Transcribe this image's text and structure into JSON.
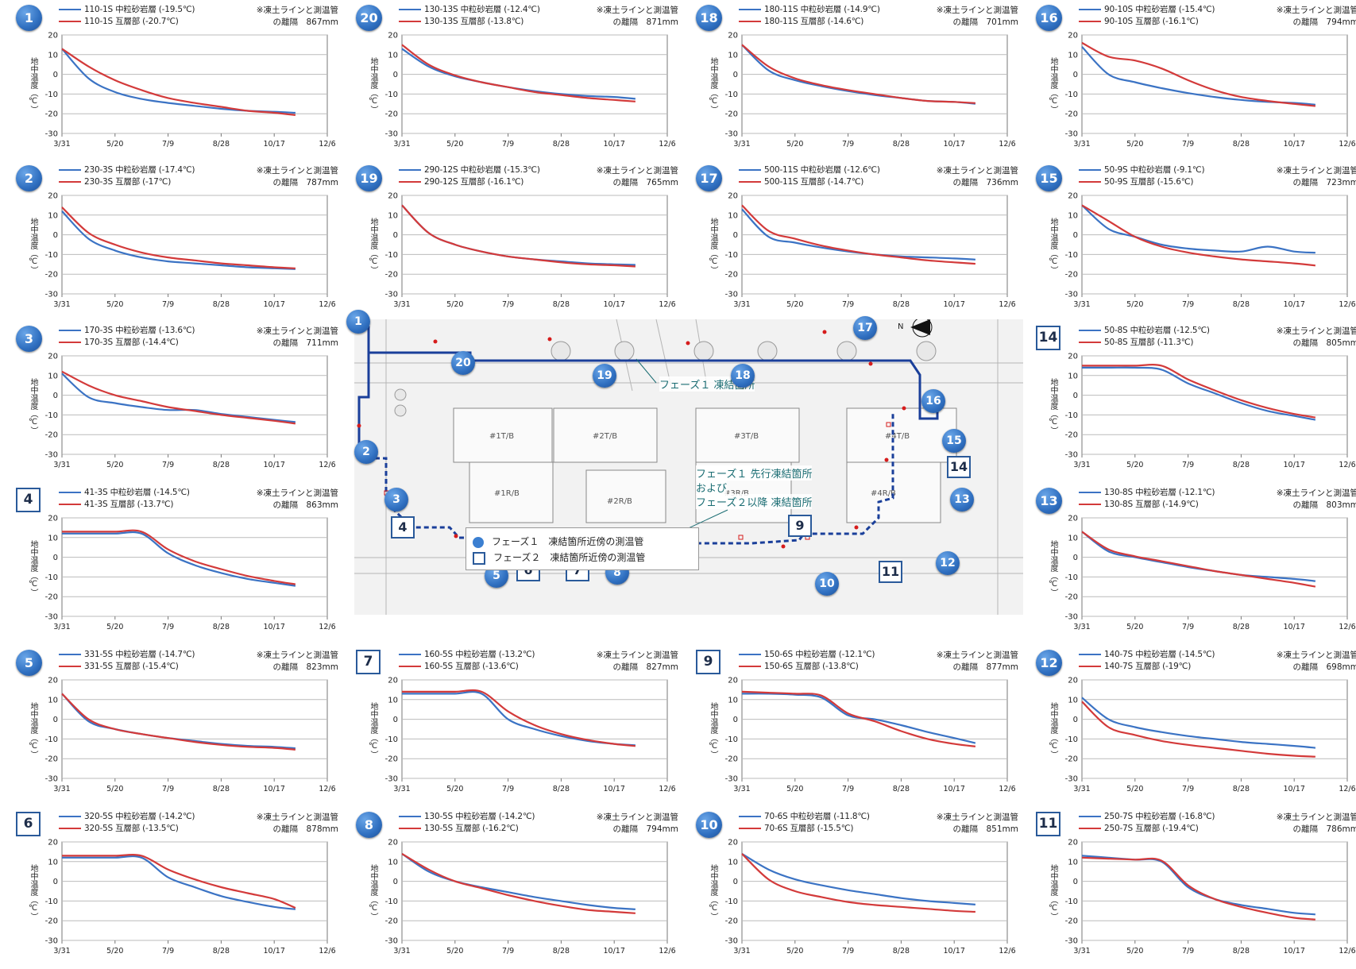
{
  "common": {
    "note_line1": "※凍土ラインと測温管",
    "ylabel": "地中温度（℃）",
    "xticks": [
      "3/31",
      "5/20",
      "7/9",
      "8/28",
      "10/17",
      "12/6"
    ],
    "yticks": [
      20,
      10,
      0,
      -10,
      -20,
      -30
    ],
    "ylim": [
      -30,
      20
    ],
    "colors": {
      "sandstone": "#3b73c4",
      "interbed": "#d33a3a",
      "marker": "#3b7fd1",
      "frozen_line": "#1a3f9a"
    }
  },
  "panels": [
    {
      "id": "1",
      "phase": 1,
      "s1": "110-1S 中粒砂岩層 (-19.5℃)",
      "s2": "110-1S 互層部 (-20.7℃)",
      "note2": "の離隔　867mm"
    },
    {
      "id": "20",
      "phase": 1,
      "s1": "130-13S 中粒砂岩層 (-12.4℃)",
      "s2": "130-13S 互層部 (-13.8℃)",
      "note2": "の離隔　871mm"
    },
    {
      "id": "18",
      "phase": 1,
      "s1": "180-11S 中粒砂岩層 (-14.9℃)",
      "s2": "180-11S 互層部 (-14.6℃)",
      "note2": "の離隔　701mm"
    },
    {
      "id": "16",
      "phase": 1,
      "s1": "90-10S 中粒砂岩層 (-15.4℃)",
      "s2": "90-10S 互層部 (-16.1℃)",
      "note2": "の離隔　794mm"
    },
    {
      "id": "2",
      "phase": 1,
      "s1": "230-3S 中粒砂岩層 (-17.4℃)",
      "s2": "230-3S 互層部 (-17℃)",
      "note2": "の離隔　787mm"
    },
    {
      "id": "19",
      "phase": 1,
      "s1": "290-12S 中粒砂岩層 (-15.3℃)",
      "s2": "290-12S 互層部 (-16.1℃)",
      "note2": "の離隔　765mm"
    },
    {
      "id": "17",
      "phase": 1,
      "s1": "500-11S 中粒砂岩層 (-12.6℃)",
      "s2": "500-11S 互層部 (-14.7℃)",
      "note2": "の離隔　736mm"
    },
    {
      "id": "15",
      "phase": 1,
      "s1": "50-9S 中粒砂岩層 (-9.1℃)",
      "s2": "50-9S 互層部 (-15.6℃)",
      "note2": "の離隔　723mm"
    },
    {
      "id": "3",
      "phase": 1,
      "s1": "170-3S 中粒砂岩層 (-13.6℃)",
      "s2": "170-3S 互層部 (-14.4℃)",
      "note2": "の離隔　711mm"
    },
    {
      "id": "14",
      "phase": 2,
      "s1": "50-8S 中粒砂岩層 (-12.5℃)",
      "s2": "50-8S 互層部 (-11.3℃)",
      "note2": "の離隔　805mm"
    },
    {
      "id": "4",
      "phase": 2,
      "s1": "41-3S 中粒砂岩層 (-14.5℃)",
      "s2": "41-3S 互層部 (-13.7℃)",
      "note2": "の離隔　863mm"
    },
    {
      "id": "13",
      "phase": 1,
      "s1": "130-8S 中粒砂岩層 (-12.1℃)",
      "s2": "130-8S 互層部 (-14.9℃)",
      "note2": "の離隔　803mm"
    },
    {
      "id": "5",
      "phase": 1,
      "s1": "331-5S 中粒砂岩層 (-14.7℃)",
      "s2": "331-5S 互層部 (-15.4℃)",
      "note2": "の離隔　823mm"
    },
    {
      "id": "7",
      "phase": 2,
      "s1": "160-5S 中粒砂岩層 (-13.2℃)",
      "s2": "160-5S 互層部 (-13.6℃)",
      "note2": "の離隔　827mm"
    },
    {
      "id": "9",
      "phase": 2,
      "s1": "150-6S 中粒砂岩層 (-12.1℃)",
      "s2": "150-6S 互層部 (-13.8℃)",
      "note2": "の離隔　877mm"
    },
    {
      "id": "12",
      "phase": 1,
      "s1": "140-7S 中粒砂岩層 (-14.5℃)",
      "s2": "140-7S 互層部 (-19℃)",
      "note2": "の離隔　698mm"
    },
    {
      "id": "6",
      "phase": 2,
      "s1": "320-5S 中粒砂岩層 (-14.2℃)",
      "s2": "320-5S 互層部 (-13.5℃)",
      "note2": "の離隔　878mm"
    },
    {
      "id": "8",
      "phase": 1,
      "s1": "130-5S 中粒砂岩層 (-14.2℃)",
      "s2": "130-5S 互層部 (-16.2℃)",
      "note2": "の離隔　794mm"
    },
    {
      "id": "10",
      "phase": 1,
      "s1": "70-6S 中粒砂岩層 (-11.8℃)",
      "s2": "70-6S 互層部 (-15.5℃)",
      "note2": "の離隔　851mm"
    },
    {
      "id": "11",
      "phase": 2,
      "s1": "250-7S 中粒砂岩層 (-16.8℃)",
      "s2": "250-7S 互層部 (-19.4℃)",
      "note2": "の離隔　786mm"
    }
  ],
  "chart_data": [
    {
      "type": "line",
      "panel": "1",
      "x": [
        "3/31",
        "4/25",
        "5/20",
        "6/14",
        "7/9",
        "8/3",
        "8/28",
        "9/22",
        "10/17",
        "11/6"
      ],
      "series": [
        {
          "name": "110-1S 中粒砂岩層",
          "values": [
            13,
            -2,
            -9,
            -12.5,
            -14.5,
            -16,
            -17.5,
            -18.5,
            -19,
            -19.5
          ]
        },
        {
          "name": "110-1S 互層部",
          "values": [
            13,
            4,
            -3,
            -8,
            -12,
            -14.5,
            -16.5,
            -18.5,
            -19.5,
            -20.7
          ]
        }
      ]
    },
    {
      "type": "line",
      "panel": "20",
      "x": [
        "3/31",
        "4/25",
        "5/20",
        "6/14",
        "7/9",
        "8/3",
        "8/28",
        "9/22",
        "10/17",
        "11/6"
      ],
      "series": [
        {
          "name": "130-13S 中粒砂岩層",
          "values": [
            13,
            4,
            -1,
            -4,
            -6.5,
            -8.5,
            -10,
            -11,
            -11.5,
            -12.4
          ]
        },
        {
          "name": "130-13S 互層部",
          "values": [
            15,
            5,
            -0.5,
            -4,
            -6.5,
            -9,
            -10.5,
            -12,
            -13,
            -13.8
          ]
        }
      ]
    },
    {
      "type": "line",
      "panel": "18",
      "x": [
        "3/31",
        "4/25",
        "5/20",
        "6/14",
        "7/9",
        "8/3",
        "8/28",
        "9/22",
        "10/17",
        "11/6"
      ],
      "series": [
        {
          "name": "180-11S 中粒砂岩層",
          "values": [
            15,
            2,
            -3,
            -6,
            -8.5,
            -10.5,
            -12,
            -13.5,
            -14,
            -14.9
          ]
        },
        {
          "name": "180-11S 互層部",
          "values": [
            15,
            4,
            -2,
            -5.5,
            -8,
            -10,
            -12,
            -13.5,
            -14,
            -14.6
          ]
        }
      ]
    },
    {
      "type": "line",
      "panel": "16",
      "x": [
        "3/31",
        "4/25",
        "5/20",
        "6/14",
        "7/9",
        "8/3",
        "8/28",
        "9/22",
        "10/17",
        "11/6"
      ],
      "series": [
        {
          "name": "90-10S 中粒砂岩層",
          "values": [
            14,
            0,
            -4,
            -7,
            -9.5,
            -11.5,
            -13,
            -14,
            -14.5,
            -15.4
          ]
        },
        {
          "name": "90-10S 互層部",
          "values": [
            16,
            9,
            7,
            3,
            -3,
            -8,
            -11.5,
            -13.5,
            -15,
            -16.1
          ]
        }
      ]
    },
    {
      "type": "line",
      "panel": "2",
      "x": [
        "3/31",
        "4/25",
        "5/20",
        "6/14",
        "7/9",
        "8/3",
        "8/28",
        "9/22",
        "10/17",
        "11/6"
      ],
      "series": [
        {
          "name": "230-3S 中粒砂岩層",
          "values": [
            12,
            -2,
            -8,
            -11.5,
            -13.5,
            -14.5,
            -15.5,
            -16.5,
            -17,
            -17.4
          ]
        },
        {
          "name": "230-3S 互層部",
          "values": [
            14,
            1,
            -5,
            -9,
            -11.5,
            -13,
            -14.5,
            -15.5,
            -16.5,
            -17
          ]
        }
      ]
    },
    {
      "type": "line",
      "panel": "19",
      "x": [
        "3/31",
        "4/25",
        "5/20",
        "6/14",
        "7/9",
        "8/3",
        "8/28",
        "9/22",
        "10/17",
        "11/6"
      ],
      "series": [
        {
          "name": "290-12S 中粒砂岩層",
          "values": [
            15,
            1,
            -5,
            -8.5,
            -11,
            -12.5,
            -13.5,
            -14.5,
            -15,
            -15.3
          ]
        },
        {
          "name": "290-12S 互層部",
          "values": [
            15,
            1,
            -5,
            -8.5,
            -11,
            -12.5,
            -14,
            -15,
            -15.5,
            -16.1
          ]
        }
      ]
    },
    {
      "type": "line",
      "panel": "17",
      "x": [
        "3/31",
        "4/25",
        "5/20",
        "6/14",
        "7/9",
        "8/3",
        "8/28",
        "9/22",
        "10/17",
        "11/6"
      ],
      "series": [
        {
          "name": "500-11S 中粒砂岩層",
          "values": [
            13,
            -1,
            -4,
            -6.5,
            -8.5,
            -10,
            -11,
            -11.5,
            -12,
            -12.6
          ]
        },
        {
          "name": "500-11S 互層部",
          "values": [
            15,
            2,
            -2,
            -5.5,
            -8,
            -10,
            -11.5,
            -13,
            -14,
            -14.7
          ]
        }
      ]
    },
    {
      "type": "line",
      "panel": "15",
      "x": [
        "3/31",
        "4/25",
        "5/20",
        "6/14",
        "7/9",
        "8/3",
        "8/28",
        "9/22",
        "10/17",
        "11/6"
      ],
      "series": [
        {
          "name": "50-9S 中粒砂岩層",
          "values": [
            15,
            3,
            -1,
            -5,
            -7,
            -8,
            -8.5,
            -6,
            -8.5,
            -9.1
          ]
        },
        {
          "name": "50-9S 互層部",
          "values": [
            15,
            7,
            -1,
            -6,
            -9,
            -11,
            -12.5,
            -13.5,
            -14.5,
            -15.6
          ]
        }
      ]
    },
    {
      "type": "line",
      "panel": "3",
      "x": [
        "3/31",
        "4/25",
        "5/20",
        "6/14",
        "7/9",
        "8/3",
        "8/28",
        "9/22",
        "10/17",
        "11/6"
      ],
      "series": [
        {
          "name": "170-3S 中粒砂岩層",
          "values": [
            11,
            -1,
            -4,
            -6,
            -7.5,
            -7.5,
            -9.5,
            -11,
            -12.5,
            -13.6
          ]
        },
        {
          "name": "170-3S 互層部",
          "values": [
            12,
            5,
            0,
            -3,
            -6,
            -8,
            -10,
            -11.5,
            -13,
            -14.4
          ]
        }
      ]
    },
    {
      "type": "line",
      "panel": "14",
      "x": [
        "3/31",
        "4/25",
        "5/20",
        "6/14",
        "7/9",
        "8/3",
        "8/28",
        "9/22",
        "10/17",
        "11/6"
      ],
      "series": [
        {
          "name": "50-8S 中粒砂岩層",
          "values": [
            14,
            14,
            14,
            13,
            6,
            1,
            -4,
            -8,
            -10.5,
            -12.5
          ]
        },
        {
          "name": "50-8S 互層部",
          "values": [
            15,
            15,
            15,
            15,
            8,
            2.5,
            -2.5,
            -6.5,
            -9.5,
            -11.3
          ]
        }
      ]
    },
    {
      "type": "line",
      "panel": "4",
      "x": [
        "3/31",
        "4/25",
        "5/20",
        "6/14",
        "7/9",
        "8/3",
        "8/28",
        "9/22",
        "10/17",
        "11/6"
      ],
      "series": [
        {
          "name": "41-3S 中粒砂岩層",
          "values": [
            12,
            12,
            12,
            12,
            2,
            -4,
            -8,
            -11,
            -13,
            -14.5
          ]
        },
        {
          "name": "41-3S 互層部",
          "values": [
            13,
            13,
            13,
            13,
            4,
            -2,
            -6,
            -9.5,
            -12,
            -13.7
          ]
        }
      ]
    },
    {
      "type": "line",
      "panel": "13",
      "x": [
        "3/31",
        "4/25",
        "5/20",
        "6/14",
        "7/9",
        "8/3",
        "8/28",
        "9/22",
        "10/17",
        "11/6"
      ],
      "series": [
        {
          "name": "130-8S 中粒砂岩層",
          "values": [
            13,
            3,
            0,
            -2.5,
            -5,
            -7,
            -9,
            -10,
            -11,
            -12.1
          ]
        },
        {
          "name": "130-8S 互層部",
          "values": [
            13,
            4,
            0.5,
            -2,
            -4.5,
            -7,
            -9,
            -11,
            -13,
            -14.9
          ]
        }
      ]
    },
    {
      "type": "line",
      "panel": "5",
      "x": [
        "3/31",
        "4/25",
        "5/20",
        "6/14",
        "7/9",
        "8/3",
        "8/28",
        "9/22",
        "10/17",
        "11/6"
      ],
      "series": [
        {
          "name": "331-5S 中粒砂岩層",
          "values": [
            13,
            -1,
            -5,
            -7.5,
            -9.5,
            -11,
            -12.5,
            -13.5,
            -14,
            -14.7
          ]
        },
        {
          "name": "331-5S 互層部",
          "values": [
            13,
            0,
            -5,
            -7.5,
            -9.5,
            -11.5,
            -13,
            -14,
            -14.5,
            -15.4
          ]
        }
      ]
    },
    {
      "type": "line",
      "panel": "7",
      "x": [
        "3/31",
        "4/25",
        "5/20",
        "6/14",
        "7/9",
        "8/3",
        "8/28",
        "9/22",
        "10/17",
        "11/6"
      ],
      "series": [
        {
          "name": "160-5S 中粒砂岩層",
          "values": [
            13,
            13,
            13,
            13,
            0,
            -5,
            -8.5,
            -11,
            -12.5,
            -13.2
          ]
        },
        {
          "name": "160-5S 互層部",
          "values": [
            14,
            14,
            14,
            14,
            4,
            -3,
            -7.5,
            -10.5,
            -12.5,
            -13.6
          ]
        }
      ]
    },
    {
      "type": "line",
      "panel": "9",
      "x": [
        "3/31",
        "4/25",
        "5/20",
        "6/14",
        "7/9",
        "8/3",
        "8/28",
        "9/22",
        "10/17",
        "11/6"
      ],
      "series": [
        {
          "name": "150-6S 中粒砂岩層",
          "values": [
            13,
            13,
            12.5,
            11,
            2,
            0,
            -3,
            -6.5,
            -9.5,
            -12.1
          ]
        },
        {
          "name": "150-6S 互層部",
          "values": [
            14,
            13.5,
            13,
            12,
            3,
            -1,
            -6,
            -10,
            -12.5,
            -13.8
          ]
        }
      ]
    },
    {
      "type": "line",
      "panel": "12",
      "x": [
        "3/31",
        "4/25",
        "5/20",
        "6/14",
        "7/9",
        "8/3",
        "8/28",
        "9/22",
        "10/17",
        "11/6"
      ],
      "series": [
        {
          "name": "140-7S 中粒砂岩層",
          "values": [
            11,
            0,
            -4,
            -6.5,
            -8.5,
            -10,
            -11.5,
            -12.5,
            -13.5,
            -14.5
          ]
        },
        {
          "name": "140-7S 互層部",
          "values": [
            9,
            -4,
            -8,
            -11,
            -13,
            -14.5,
            -16,
            -17.5,
            -18.5,
            -19
          ]
        }
      ]
    },
    {
      "type": "line",
      "panel": "6",
      "x": [
        "3/31",
        "4/25",
        "5/20",
        "6/14",
        "7/9",
        "8/3",
        "8/28",
        "9/22",
        "10/17",
        "11/6"
      ],
      "series": [
        {
          "name": "320-5S 中粒砂岩層",
          "values": [
            12,
            12,
            12,
            12,
            2,
            -3,
            -7.5,
            -10.5,
            -13,
            -14.2
          ]
        },
        {
          "name": "320-5S 互層部",
          "values": [
            13,
            13,
            13,
            13,
            6,
            1,
            -3,
            -6,
            -9,
            -13.5
          ]
        }
      ]
    },
    {
      "type": "line",
      "panel": "8",
      "x": [
        "3/31",
        "4/25",
        "5/20",
        "6/14",
        "7/9",
        "8/3",
        "8/28",
        "9/22",
        "10/17",
        "11/6"
      ],
      "series": [
        {
          "name": "130-5S 中粒砂岩層",
          "values": [
            14,
            5,
            0,
            -3,
            -5.5,
            -8,
            -10,
            -12,
            -13.5,
            -14.2
          ]
        },
        {
          "name": "130-5S 互層部",
          "values": [
            14,
            6,
            0,
            -3.5,
            -7,
            -10,
            -12.5,
            -14.5,
            -15.5,
            -16.2
          ]
        }
      ]
    },
    {
      "type": "line",
      "panel": "10",
      "x": [
        "3/31",
        "4/25",
        "5/20",
        "6/14",
        "7/9",
        "8/3",
        "8/28",
        "9/22",
        "10/17",
        "11/6"
      ],
      "series": [
        {
          "name": "70-6S 中粒砂岩層",
          "values": [
            14,
            6,
            1,
            -2,
            -4.5,
            -6.5,
            -8.5,
            -10,
            -11,
            -11.8
          ]
        },
        {
          "name": "70-6S 互層部",
          "values": [
            14,
            1,
            -5,
            -8,
            -10.5,
            -12,
            -13,
            -14,
            -15,
            -15.5
          ]
        }
      ]
    },
    {
      "type": "line",
      "panel": "11",
      "x": [
        "3/31",
        "4/25",
        "5/20",
        "6/14",
        "7/9",
        "8/3",
        "8/28",
        "9/22",
        "10/17",
        "11/6"
      ],
      "series": [
        {
          "name": "250-7S 中粒砂岩層",
          "values": [
            13,
            12,
            11,
            10,
            -3,
            -9,
            -12,
            -14,
            -16,
            -16.8
          ]
        },
        {
          "name": "250-7S 互層部",
          "values": [
            12,
            11.5,
            11,
            10.5,
            -2,
            -9,
            -13,
            -16,
            -18.5,
            -19.4
          ]
        }
      ]
    }
  ],
  "map": {
    "caption_phase1": "フェーズ１ 凍結箇所",
    "caption_phase2_line1": "フェーズ１ 先行凍結箇所",
    "caption_phase2_line2": "および",
    "caption_phase2_line3": "フェーズ２以降 凍結箇所",
    "legend_circle": "フェーズ１　凍結箇所近傍の測温管",
    "legend_square": "フェーズ２　凍結箇所近傍の測温管",
    "north_label": "N",
    "buildings": [
      "#1T/B",
      "#2T/B",
      "#3T/B",
      "#4T/B",
      "#1R/B",
      "#2R/B",
      "#3R/B",
      "#4R/B"
    ]
  }
}
